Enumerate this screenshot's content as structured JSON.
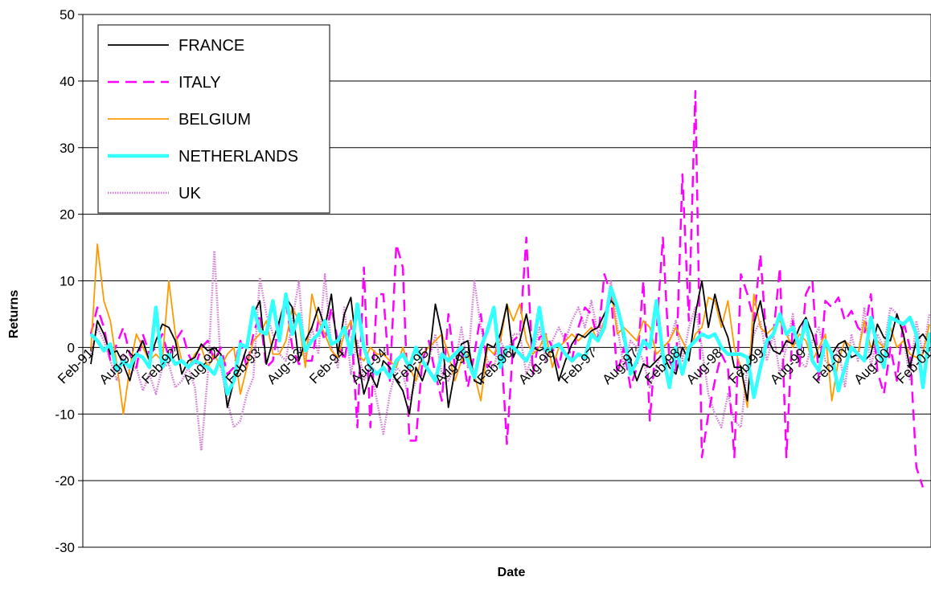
{
  "chart_data": {
    "type": "line",
    "xlabel": "Date",
    "ylabel": "Returns",
    "ylim": [
      -30,
      50
    ],
    "yticks": [
      -30,
      -20,
      -10,
      0,
      10,
      20,
      30,
      40,
      50
    ],
    "xticks": [
      "Feb-91",
      "Aug-91",
      "Feb-92",
      "Aug-92",
      "Feb-93",
      "Aug-93",
      "Feb-94",
      "Aug-94",
      "Feb-95",
      "Aug-95",
      "Feb-96",
      "Aug-96",
      "Feb-97",
      "Aug-97",
      "Feb-98",
      "Aug-98",
      "Feb-99",
      "Aug-99",
      "Feb-00",
      "Aug-00",
      "Feb-01"
    ],
    "grid": true,
    "legend_position": "top-left",
    "series": [
      {
        "name": "FRANCE",
        "color": "#000000",
        "style": "solid",
        "values": [
          -2.5,
          4.0,
          2.0,
          -1.0,
          -0.5,
          -2.5,
          -5.0,
          -1.0,
          1.0,
          -2.0,
          1.0,
          3.5,
          3.0,
          1.0,
          -4.0,
          -2.0,
          -1.5,
          0.5,
          -0.5,
          0.0,
          -1.0,
          -9.0,
          -5.0,
          -3.0,
          0.0,
          5.0,
          7.0,
          -2.5,
          1.0,
          4.0,
          7.5,
          6.0,
          -2.0,
          1.0,
          3.0,
          6.0,
          3.0,
          8.0,
          -1.0,
          5.0,
          7.5,
          -1.0,
          -7.0,
          -4.0,
          -6.0,
          -2.0,
          -3.0,
          -5.0,
          -6.5,
          -10.0,
          -3.0,
          -5.0,
          -2.0,
          6.5,
          2.0,
          -9.0,
          -3.5,
          0.5,
          1.0,
          -5.0,
          -5.5,
          0.5,
          0.0,
          2.0,
          6.5,
          -1.5,
          1.0,
          5.0,
          0.0,
          -0.5,
          0.0,
          -0.5,
          -5.0,
          -2.0,
          0.5,
          2.0,
          1.5,
          2.5,
          3.0,
          5.0,
          7.0,
          6.0,
          1.0,
          -2.0,
          -5.0,
          -2.5,
          -3.0,
          -2.0,
          -1.0,
          -3.0,
          -4.0,
          0.0,
          -2.0,
          5.0,
          10.0,
          3.0,
          8.0,
          4.0,
          1.5,
          -3.0,
          -3.0,
          -8.0,
          3.5,
          7.0,
          1.5,
          -0.5,
          -1.0,
          1.0,
          0.5,
          3.0,
          4.5,
          2.0,
          -1.5,
          0.5,
          -1.0,
          0.5,
          1.0,
          -1.5,
          -1.0,
          -2.0,
          -1.0,
          3.5,
          1.5,
          1.0,
          5.0,
          2.0,
          -3.0,
          1.0,
          2.0,
          0.5
        ]
      },
      {
        "name": "ITALY",
        "color": "#ff00ff",
        "style": "dashed",
        "values": [
          2.0,
          6.0,
          3.0,
          -2.0,
          0.5,
          3.0,
          -1.0,
          -3.0,
          2.0,
          -1.0,
          0.0,
          2.0,
          -1.5,
          1.0,
          2.5,
          -1.0,
          -3.0,
          0.0,
          1.0,
          -2.0,
          0.0,
          -4.0,
          -3.0,
          1.0,
          -3.0,
          2.0,
          5.0,
          -3.0,
          -2.0,
          4.0,
          7.0,
          0.0,
          -2.5,
          -2.0,
          -2.0,
          4.0,
          1.0,
          6.0,
          1.0,
          -2.0,
          4.0,
          -12.0,
          12.0,
          -12.0,
          8.0,
          8.0,
          -5.0,
          15.5,
          12.0,
          -14.0,
          -14.0,
          -2.0,
          1.0,
          -4.0,
          -8.0,
          5.0,
          -3.0,
          0.0,
          -6.0,
          -1.0,
          5.0,
          -3.0,
          -1.5,
          2.0,
          -14.5,
          1.0,
          2.0,
          16.5,
          -4.0,
          1.5,
          2.0,
          0.0,
          -3.0,
          2.0,
          -2.0,
          3.0,
          6.0,
          5.0,
          1.0,
          11.0,
          8.0,
          -4.0,
          0.0,
          -6.0,
          -3.0,
          10.0,
          -11.0,
          2.0,
          16.5,
          -2.0,
          -4.0,
          26.0,
          4.0,
          38.5,
          -16.5,
          -10.0,
          -5.0,
          -1.0,
          -3.0,
          -16.5,
          11.0,
          8.0,
          4.0,
          14.0,
          0.0,
          2.0,
          12.0,
          -16.5,
          4.0,
          -3.0,
          8.0,
          10.0,
          -5.0,
          7.0,
          6.0,
          7.5,
          4.0,
          5.5,
          3.0,
          2.0,
          8.0,
          -3.5,
          -7.0,
          0.0,
          -5.0,
          4.0,
          0.0,
          -18.0,
          -21.0
        ]
      },
      {
        "name": "BELGIUM",
        "color": "#ff9900",
        "style": "solid",
        "values": [
          -0.5,
          15.5,
          7.0,
          4.0,
          -2.5,
          -10.0,
          -3.0,
          2.0,
          0.0,
          -2.0,
          -1.0,
          -2.0,
          10.0,
          2.0,
          -2.0,
          -3.0,
          -1.0,
          0.0,
          -3.0,
          -1.0,
          -3.0,
          -1.0,
          0.0,
          -7.0,
          -3.0,
          1.0,
          2.0,
          4.0,
          -1.0,
          -1.0,
          1.0,
          6.0,
          4.0,
          -3.0,
          8.0,
          4.0,
          2.0,
          -0.5,
          -1.5,
          2.0,
          4.0,
          -1.0,
          -2.0,
          0.0,
          -1.0,
          -1.0,
          -2.0,
          -3.0,
          0.0,
          -3.0,
          -5.0,
          -1.0,
          0.0,
          1.0,
          2.0,
          -1.0,
          -5.0,
          -2.0,
          -1.0,
          -4.0,
          -8.0,
          0.0,
          -1.0,
          1.0,
          6.5,
          4.0,
          6.5,
          1.0,
          -1.0,
          0.0,
          2.0,
          -3.0,
          0.0,
          1.0,
          2.0,
          1.0,
          2.0,
          3.0,
          1.0,
          4.0,
          9.0,
          2.0,
          3.0,
          2.0,
          1.0,
          4.0,
          3.0,
          -1.0,
          0.0,
          1.0,
          3.0,
          1.0,
          -1.0,
          2.0,
          3.0,
          7.5,
          7.0,
          3.0,
          7.0,
          0.0,
          -3.0,
          -9.0,
          8.0,
          3.0,
          2.0,
          3.0,
          4.0,
          2.0,
          0.0,
          2.0,
          1.0,
          -2.0,
          0.0,
          2.0,
          -8.0,
          -2.0,
          1.0,
          0.0,
          -1.0,
          4.0,
          0.0,
          1.0,
          0.0,
          3.0,
          0.0,
          1.0,
          -1.0,
          -1.5,
          -1.0,
          3.5
        ]
      },
      {
        "name": "NETHERLANDS",
        "color": "#33ffff",
        "style": "thick",
        "values": [
          2.0,
          1.0,
          -0.5,
          0.5,
          -3.5,
          -2.0,
          -3.0,
          -1.0,
          -1.5,
          -3.0,
          6.0,
          -3.0,
          -1.0,
          -2.5,
          -2.0,
          -3.0,
          -2.0,
          -2.5,
          -3.0,
          -4.0,
          -1.5,
          -7.0,
          -5.0,
          0.5,
          0.0,
          6.0,
          2.5,
          2.0,
          7.0,
          1.0,
          8.0,
          2.0,
          5.0,
          -0.5,
          1.0,
          2.0,
          4.0,
          0.5,
          1.0,
          3.0,
          -1.0,
          6.5,
          0.0,
          -3.0,
          -4.0,
          -3.0,
          -4.5,
          -2.0,
          -1.0,
          -3.0,
          0.0,
          -2.0,
          -3.5,
          -5.0,
          -1.0,
          -2.0,
          -1.0,
          0.0,
          -2.0,
          -4.5,
          0.0,
          2.5,
          6.0,
          -3.0,
          0.0,
          0.0,
          -1.0,
          -2.0,
          0.0,
          6.0,
          -0.5,
          0.0,
          0.5,
          -1.0,
          -2.0,
          -1.0,
          -1.5,
          2.0,
          1.0,
          3.0,
          9.0,
          6.0,
          2.0,
          -4.0,
          -2.0,
          1.0,
          0.0,
          7.0,
          -1.0,
          -6.0,
          0.0,
          -4.0,
          0.0,
          1.0,
          2.0,
          1.5,
          2.0,
          0.0,
          -1.0,
          -1.0,
          -1.0,
          -1.5,
          -7.5,
          -3.0,
          1.0,
          2.0,
          5.0,
          2.0,
          3.0,
          0.0,
          4.0,
          -2.0,
          -3.5,
          1.0,
          -1.0,
          -6.5,
          -3.0,
          0.0,
          -1.0,
          -2.0,
          4.5,
          0.0,
          -3.0,
          4.5,
          4.0,
          3.5,
          4.5,
          2.0,
          -6.0,
          2.0,
          -1.0,
          -2.0
        ]
      },
      {
        "name": "UK",
        "color": "#cc66cc",
        "style": "dotted",
        "values": [
          -1.0,
          3.0,
          1.0,
          -2.0,
          -5.0,
          -1.0,
          -4.0,
          -3.0,
          -6.5,
          -4.0,
          -7.0,
          -3.0,
          -2.5,
          -6.0,
          -5.0,
          -3.0,
          -6.0,
          -15.5,
          -4.0,
          14.5,
          -3.0,
          -8.0,
          -12.0,
          -11.0,
          -7.0,
          -4.5,
          10.5,
          5.0,
          2.0,
          -1.0,
          -2.0,
          4.0,
          10.0,
          -2.0,
          3.0,
          -1.0,
          11.0,
          0.0,
          -3.0,
          6.0,
          -4.0,
          1.0,
          -5.0,
          -3.0,
          -8.0,
          -13.0,
          -7.0,
          -3.0,
          -4.0,
          -8.0,
          -5.0,
          -3.0,
          -2.0,
          2.0,
          -4.0,
          -5.0,
          -3.0,
          3.0,
          -3.0,
          10.0,
          3.0,
          -2.0,
          -3.0,
          1.0,
          -1.0,
          2.0,
          2.0,
          -4.0,
          -1.0,
          3.0,
          -2.0,
          1.0,
          3.0,
          1.0,
          4.0,
          6.0,
          3.0,
          7.0,
          2.0,
          4.0,
          10.0,
          3.0,
          -3.0,
          1.0,
          0.0,
          -2.0,
          -6.0,
          -3.0,
          0.0,
          1.0,
          4.0,
          -2.0,
          3.0,
          6.0,
          0.0,
          -7.0,
          -10.0,
          -12.0,
          -7.0,
          -11.0,
          -12.0,
          -3.0,
          2.0,
          4.0,
          -2.0,
          2.0,
          -4.0,
          0.0,
          5.0,
          -2.0,
          -3.0,
          1.0,
          3.0,
          -2.0,
          -3.0,
          0.0,
          -6.0,
          2.0,
          -2.0,
          6.0,
          -3.0,
          2.0,
          0.0,
          6.0,
          5.0,
          2.0,
          -5.0,
          4.0,
          -1.0,
          5.0
        ]
      }
    ]
  }
}
